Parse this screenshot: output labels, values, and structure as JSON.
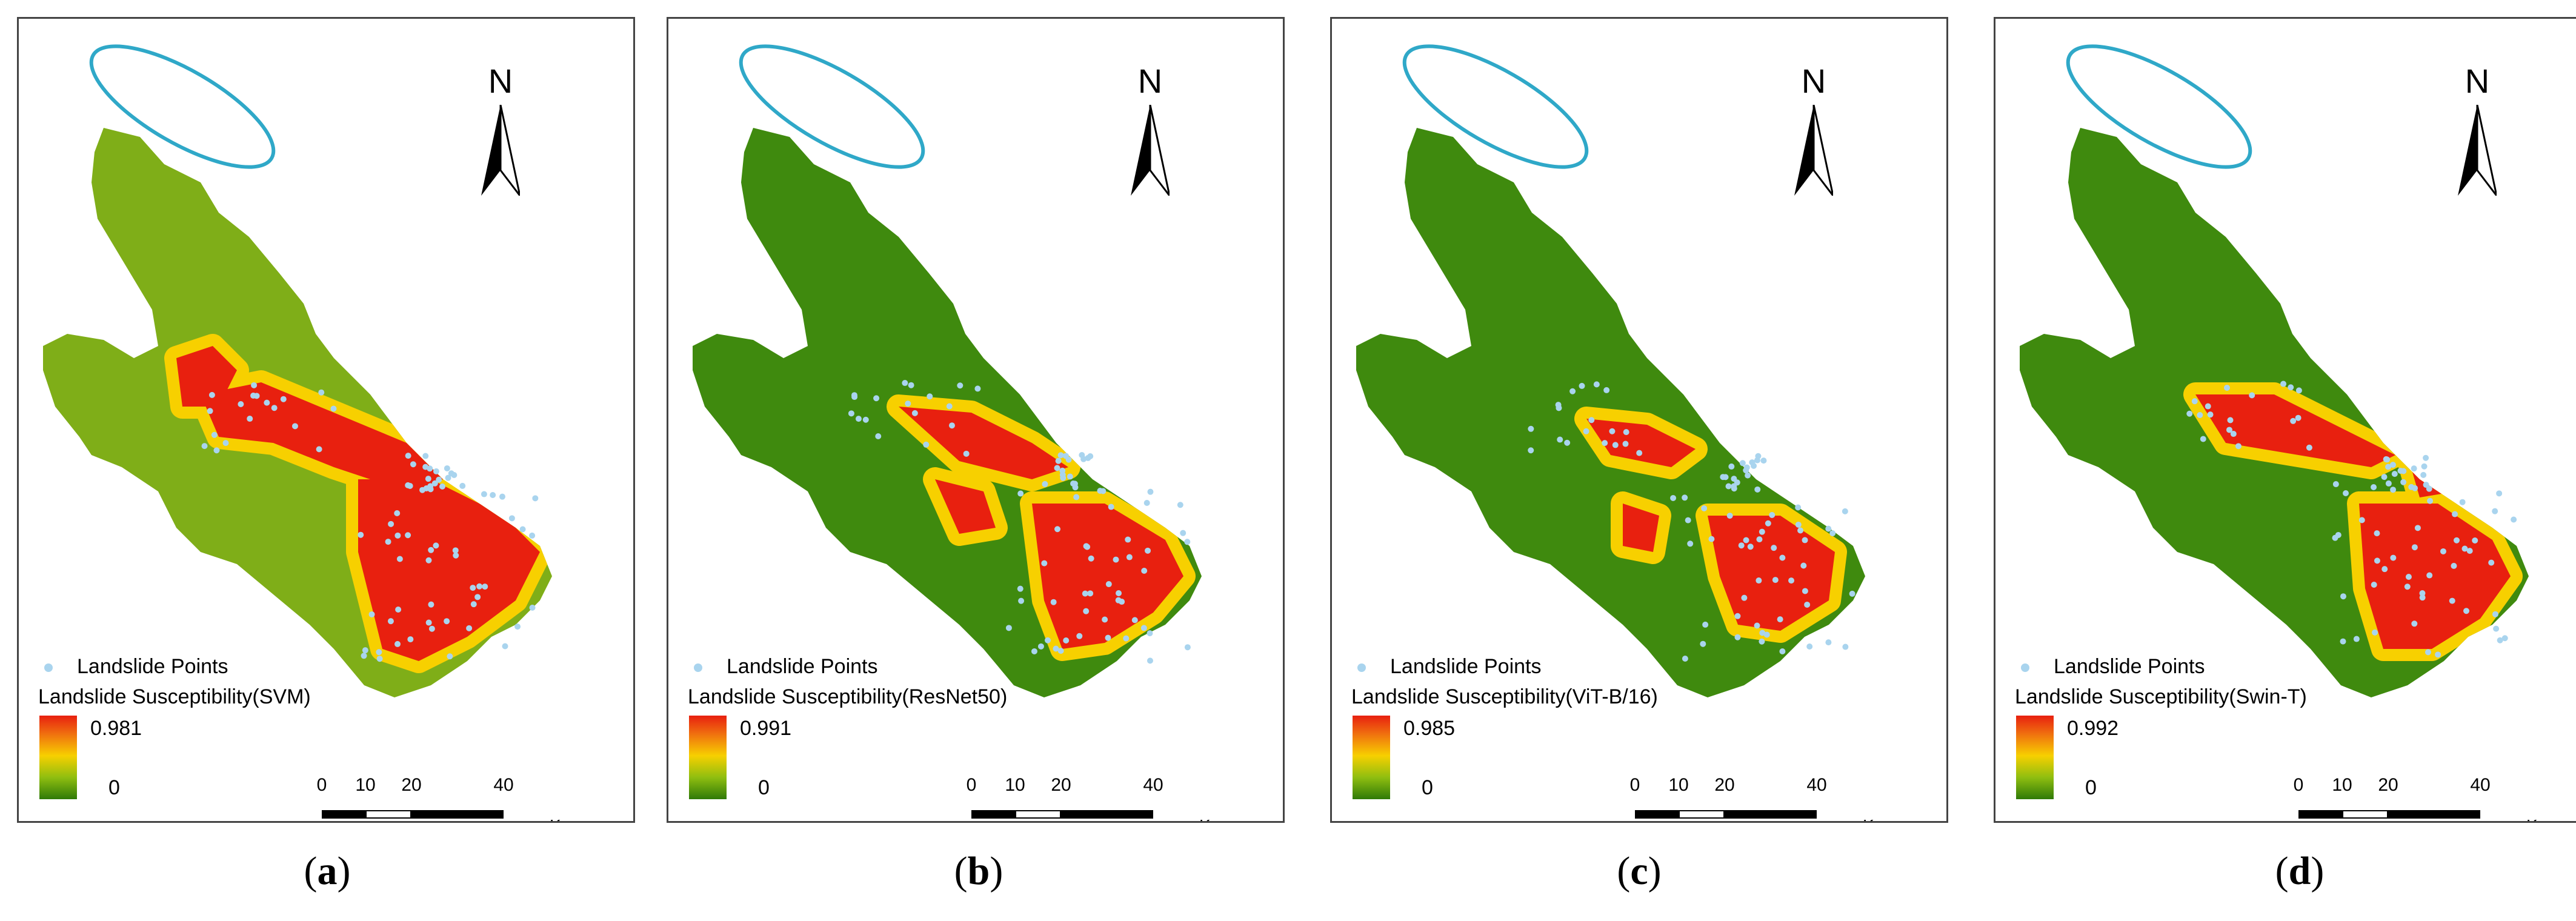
{
  "panels": [
    {
      "id": "a",
      "legend_points": "Landslide Points",
      "legend_title": "Landslide Susceptibility(SVM)",
      "max": "0.981",
      "min": "0",
      "caption_letter": "a"
    },
    {
      "id": "b",
      "legend_points": "Landslide Points",
      "legend_title": "Landslide Susceptibility(ResNet50)",
      "max": "0.991",
      "min": "0",
      "caption_letter": "b"
    },
    {
      "id": "c",
      "legend_points": "Landslide Points",
      "legend_title": "Landslide Susceptibility(ViT-B/16)",
      "max": "0.985",
      "min": "0",
      "caption_letter": "c"
    },
    {
      "id": "d",
      "legend_points": "Landslide Points",
      "legend_title": "Landslide Susceptibility(Swin-T)",
      "max": "0.992",
      "min": "0",
      "caption_letter": "d"
    }
  ],
  "north_label": "N",
  "scale": {
    "ticks": [
      "0",
      "10",
      "20",
      "40"
    ],
    "unit": "Km"
  },
  "colors": {
    "high": "#e8200f",
    "mid": "#f7d000",
    "low": "#2f7a08",
    "ellipse": "#2fa8c8",
    "points": "#a9d4ee"
  },
  "caption_paren_open": "(",
  "caption_paren_close": ")"
}
